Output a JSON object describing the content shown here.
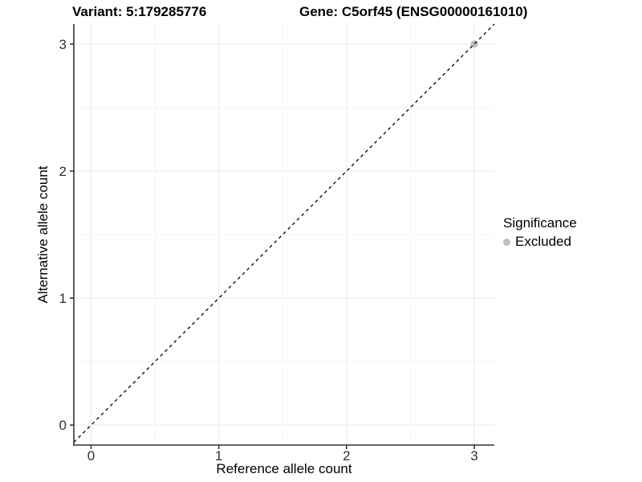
{
  "figure": {
    "title_left": "Variant: 5:179285776",
    "title_right": "Gene: C5orf45 (ENSG00000161010)"
  },
  "chart_data": {
    "type": "scatter",
    "title": "Variant: 5:179285776   /   Gene: C5orf45 (ENSG00000161010)",
    "xlabel": "Reference allele count",
    "ylabel": "Alternative allele count",
    "xlim": [
      -0.135,
      3.157
    ],
    "ylim": [
      -0.157,
      3.157
    ],
    "xticks": [
      "0",
      "1",
      "2",
      "3"
    ],
    "yticks": [
      "0",
      "1",
      "2",
      "3"
    ],
    "minor_xticks": [
      0.5,
      1.5,
      2.5
    ],
    "minor_yticks": [
      0.5,
      1.5,
      2.5
    ],
    "grid": "on",
    "reference_line": {
      "type": "identity",
      "slope": 1,
      "intercept": 0,
      "style": "dashed",
      "color": "#000000"
    },
    "series": [
      {
        "name": "Excluded",
        "color": "#bebebe",
        "marker": "circle",
        "points": [
          [
            3,
            3
          ]
        ]
      }
    ],
    "legend": {
      "title": "Significance",
      "position": "right",
      "items": [
        {
          "label": "Excluded",
          "color": "#bebebe"
        }
      ]
    }
  },
  "colors": {
    "background": "#ffffff",
    "grid_major": "#e9e9e9",
    "grid_minor": "#f5f5f5",
    "axis_line": "#333333",
    "tick_text": "#303030",
    "title_text": "#000000",
    "point_excluded": "#bebebe"
  }
}
